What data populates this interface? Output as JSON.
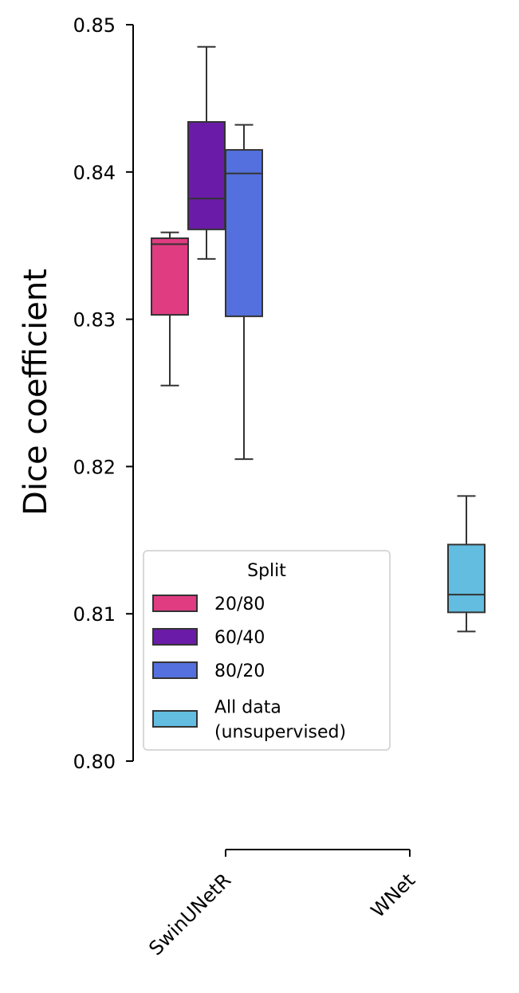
{
  "chart_data": {
    "type": "box",
    "title": "",
    "xlabel": "",
    "ylabel": "Dice coefficient",
    "ylim": [
      0.8,
      0.85
    ],
    "yticks": [
      0.8,
      0.81,
      0.82,
      0.83,
      0.84,
      0.85
    ],
    "ytick_labels": [
      "0.80",
      "0.81",
      "0.82",
      "0.83",
      "0.84",
      "0.85"
    ],
    "categories": [
      "SwinUNetR",
      "WNet"
    ],
    "legend": {
      "title": "Split",
      "placement": "lower-left",
      "entries": [
        "20/80",
        "60/40",
        "80/20",
        "All data\n(unsupervised)"
      ]
    },
    "series": [
      {
        "name": "20/80",
        "color": "#e03c82",
        "category": "SwinUNetR",
        "whislo": 0.8255,
        "q1": 0.8303,
        "med": 0.8351,
        "q3": 0.8355,
        "whishi": 0.8359
      },
      {
        "name": "60/40",
        "color": "#6a1ca8",
        "category": "SwinUNetR",
        "whislo": 0.8341,
        "q1": 0.8361,
        "med": 0.8382,
        "q3": 0.8434,
        "whishi": 0.8485
      },
      {
        "name": "80/20",
        "color": "#5470de",
        "category": "SwinUNetR",
        "whislo": 0.8205,
        "q1": 0.8302,
        "med": 0.8399,
        "q3": 0.8415,
        "whishi": 0.8432
      },
      {
        "name": "All data\n(unsupervised)",
        "color": "#62bde0",
        "category": "WNet",
        "whislo": 0.8088,
        "q1": 0.8101,
        "med": 0.8113,
        "q3": 0.8147,
        "whishi": 0.818
      }
    ]
  }
}
